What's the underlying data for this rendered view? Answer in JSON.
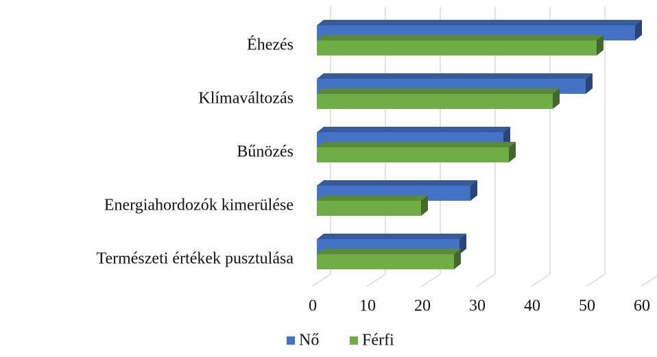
{
  "chart_data": {
    "type": "bar3d_horizontal",
    "categories": [
      "Éhezés",
      "Klímaváltozás",
      "Bűnözés",
      "Energiahordozók kimerülése",
      "Természeti értékek pusztulása"
    ],
    "series": [
      {
        "name": "Nő",
        "color": "#4472c4",
        "values": [
          58,
          49,
          34,
          28,
          26
        ]
      },
      {
        "name": "Férfi",
        "color": "#70ad47",
        "values": [
          51,
          43,
          35,
          19,
          25
        ]
      }
    ],
    "xlim": [
      0,
      60
    ],
    "xticks": [
      0,
      10,
      20,
      30,
      40,
      50,
      60
    ],
    "grid": true,
    "legend": "bottom"
  }
}
